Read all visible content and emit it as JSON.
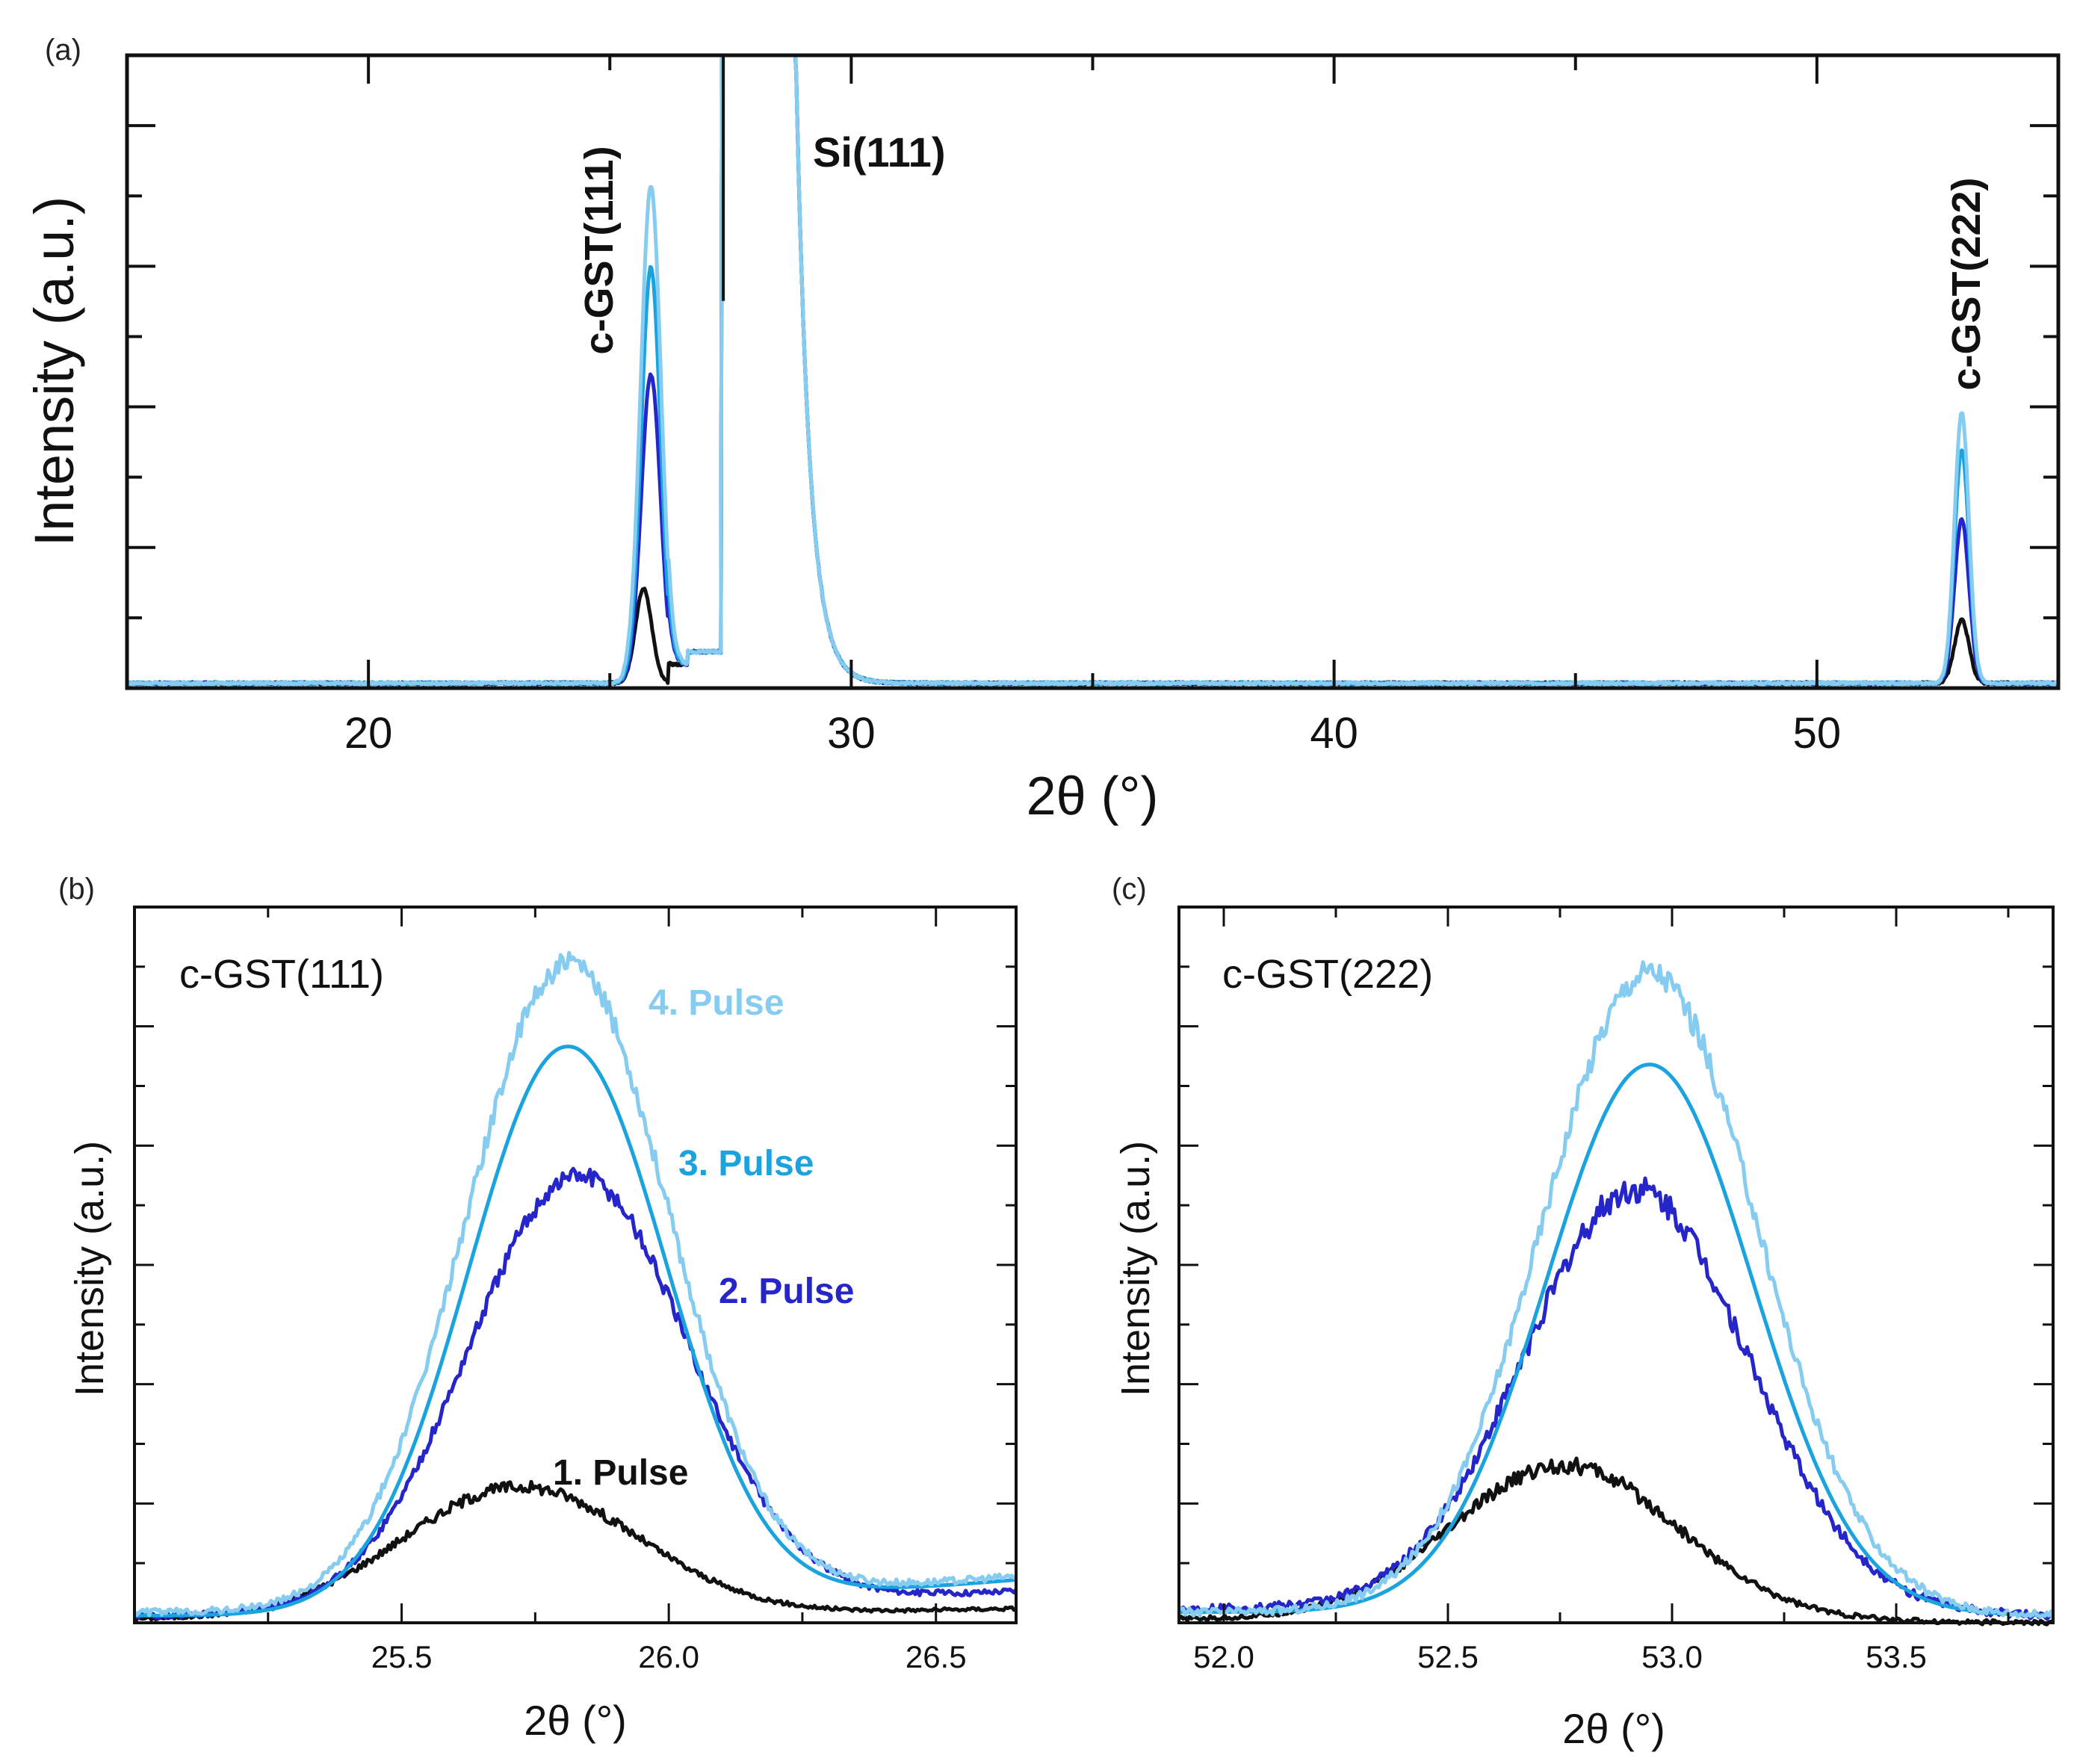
{
  "colors": {
    "pulse1": "#111111",
    "pulse2": "#2525c9",
    "pulse3": "#1aa3df",
    "pulse4": "#85ccf0",
    "axis": "#111111"
  },
  "panels": [
    {
      "id": "a",
      "letter": "(a)",
      "xlabel": "2θ (°)",
      "ylabel": "Intensity (a.u.)",
      "peak_labels": [
        "c-GST(111)",
        "Si(111)",
        "c-GST(222)"
      ]
    },
    {
      "id": "b",
      "letter": "(b)",
      "xlabel": "2θ (°)",
      "ylabel": "Intensity (a.u.)",
      "inset_label": "c-GST(111)",
      "series_labels": [
        "4. Pulse",
        "3. Pulse",
        "2. Pulse",
        "1. Pulse"
      ]
    },
    {
      "id": "c",
      "letter": "(c)",
      "xlabel": "2θ (°)",
      "ylabel": "Intensity (a.u.)",
      "inset_label": "c-GST(222)"
    }
  ],
  "chart_data": [
    {
      "panel": "a",
      "type": "line",
      "xlabel": "2θ (°)",
      "ylabel": "Intensity (a.u.)",
      "xlim": [
        15,
        55
      ],
      "ylim": [
        0,
        1
      ],
      "xticks": [
        20,
        30,
        40,
        50
      ],
      "xtick_labels": [
        "20",
        "30",
        "40",
        "50"
      ],
      "ytick_labels_shown": false,
      "grid": false,
      "annotations": [
        "c-GST(111)",
        "Si(111)",
        "c-GST(222)"
      ],
      "series": [
        {
          "color_key": "pulse1",
          "peaks": [
            {
              "center": 25.7,
              "width": 0.17,
              "height": 0.15
            },
            {
              "center": 53.0,
              "width": 0.15,
              "height": 0.1
            }
          ]
        },
        {
          "color_key": "pulse2",
          "peaks": [
            {
              "center": 25.85,
              "width": 0.2,
              "height": 0.49
            },
            {
              "center": 53.0,
              "width": 0.15,
              "height": 0.26
            }
          ]
        },
        {
          "color_key": "pulse3",
          "peaks": [
            {
              "center": 25.85,
              "width": 0.2,
              "height": 0.66
            },
            {
              "center": 53.0,
              "width": 0.15,
              "height": 0.37
            }
          ]
        },
        {
          "color_key": "pulse4",
          "peaks": [
            {
              "center": 25.85,
              "width": 0.21,
              "height": 0.79
            },
            {
              "center": 53.0,
              "width": 0.15,
              "height": 0.43
            }
          ]
        }
      ],
      "substrate_peak": {
        "label": "Si(111)",
        "from": 27.3,
        "to": 28.8,
        "clipped_at_top": true,
        "dip_at": 27.35
      }
    },
    {
      "panel": "b",
      "type": "line",
      "xlabel": "2θ (°)",
      "ylabel": "Intensity (a.u.)",
      "xlim": [
        25.0,
        26.65
      ],
      "ylim": [
        0,
        1
      ],
      "xticks": [
        25.5,
        26.0,
        26.5
      ],
      "xtick_labels": [
        "25.5",
        "26.0",
        "26.5"
      ],
      "ytick_labels_shown": false,
      "grid": false,
      "annotations": [
        "c-GST(111)"
      ],
      "series": [
        {
          "name": "1. Pulse",
          "color_key": "pulse1",
          "center": 25.72,
          "sigma": 0.22,
          "peak": 0.185,
          "baseline_left": 0.005,
          "baseline_right": 0.02,
          "noise": 0.006
        },
        {
          "name": "2. Pulse",
          "color_key": "pulse2",
          "center": 25.83,
          "sigma": 0.205,
          "peak": 0.615,
          "baseline_left": 0.01,
          "baseline_right": 0.045,
          "noise": 0.01
        },
        {
          "name": "3. Pulse",
          "color_key": "pulse3",
          "center": 25.81,
          "sigma": 0.185,
          "peak": 0.795,
          "baseline_left": 0.01,
          "baseline_right": 0.06,
          "noise": 0.0
        },
        {
          "name": "4. Pulse",
          "color_key": "pulse4",
          "center": 25.81,
          "sigma": 0.19,
          "peak": 0.905,
          "baseline_left": 0.015,
          "baseline_right": 0.065,
          "noise": 0.012
        }
      ]
    },
    {
      "panel": "c",
      "type": "line",
      "xlabel": "2θ (°)",
      "ylabel": "Intensity (a.u.)",
      "xlim": [
        51.9,
        53.85
      ],
      "ylim": [
        0,
        1
      ],
      "xticks": [
        52.0,
        52.5,
        53.0,
        53.5
      ],
      "xtick_labels": [
        "52.0",
        "52.5",
        "53.0",
        "53.5"
      ],
      "ytick_labels_shown": false,
      "grid": false,
      "annotations": [
        "c-GST(222)"
      ],
      "series": [
        {
          "name": "1. Pulse",
          "color_key": "pulse1",
          "center": 52.76,
          "sigma": 0.25,
          "peak": 0.215,
          "baseline_left": 0.005,
          "baseline_right": 0.0,
          "noise": 0.008
        },
        {
          "name": "2. Pulse",
          "color_key": "pulse2",
          "center": 52.92,
          "sigma": 0.25,
          "peak": 0.585,
          "baseline_left": 0.02,
          "baseline_right": 0.01,
          "noise": 0.014
        },
        {
          "name": "3. Pulse",
          "color_key": "pulse3",
          "center": 52.95,
          "sigma": 0.23,
          "peak": 0.765,
          "baseline_left": 0.015,
          "baseline_right": 0.01,
          "noise": 0.0
        },
        {
          "name": "4. Pulse",
          "color_key": "pulse4",
          "center": 52.95,
          "sigma": 0.24,
          "peak": 0.895,
          "baseline_left": 0.015,
          "baseline_right": 0.01,
          "noise": 0.014
        }
      ]
    }
  ]
}
